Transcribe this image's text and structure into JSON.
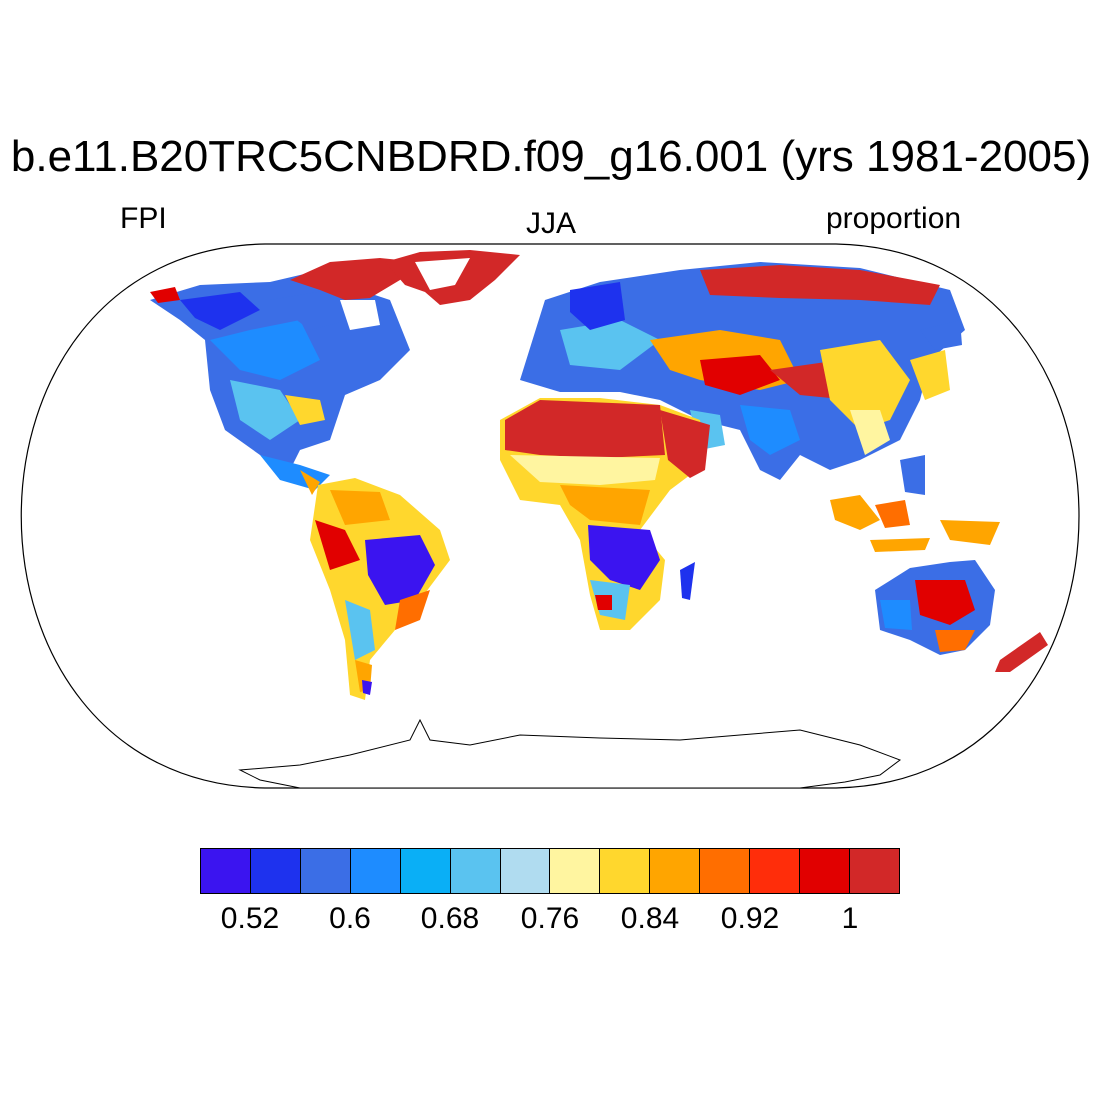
{
  "title": "b.e11.B20TRC5CNBDRD.f09_g16.001 (yrs 1981-2005)",
  "subtitle_left": "FPI",
  "subtitle_center": "JJA",
  "subtitle_right": "proportion",
  "colorbar": {
    "colors": [
      "#3b14f0",
      "#1e32ee",
      "#3b6ee6",
      "#1e8cff",
      "#0aaff6",
      "#5ac3f0",
      "#b0dcf0",
      "#fff5a0",
      "#ffd72d",
      "#ffa500",
      "#ff6e00",
      "#ff2d0a",
      "#e10000",
      "#d22828"
    ],
    "labels": [
      "0.52",
      "0.6",
      "0.68",
      "0.76",
      "0.84",
      "0.92",
      "1"
    ]
  },
  "legend_colors": {
    "low": "#3b14f0",
    "mid": "#5ac3f0",
    "high": "#d22828"
  }
}
